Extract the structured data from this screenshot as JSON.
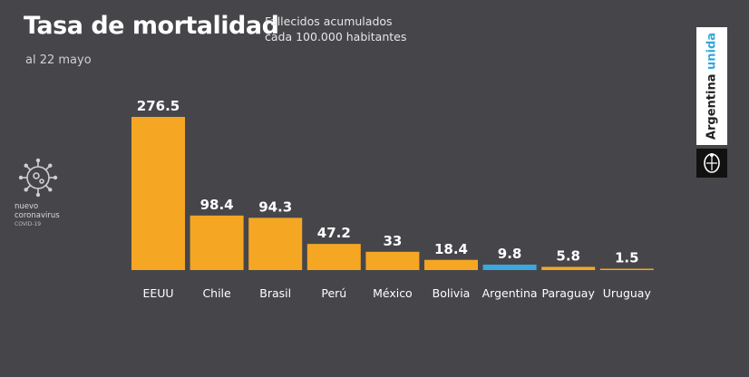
{
  "header": {
    "title": "Tasa de mortalidad",
    "subtitle_line1": "Fallecidos acumulados",
    "subtitle_line2": "cada 100.000 habitantes",
    "date": "al 22 mayo"
  },
  "logo": {
    "line1": "nuevo",
    "line2": "coronavirus",
    "line3": "COVID-19",
    "icon": "coronavirus-icon"
  },
  "brand": {
    "text_main": "Argentina",
    "text_accent": "unida",
    "icon": "national-seal-icon"
  },
  "colors": {
    "background": "#46464a",
    "bar": "#f5a623",
    "highlight": "#3ba9dc",
    "accent": "#37a7d8"
  },
  "chart_data": {
    "type": "bar",
    "categories": [
      "EEUU",
      "Chile",
      "Brasil",
      "Perú",
      "México",
      "Bolivia",
      "Argentina",
      "Paraguay",
      "Uruguay"
    ],
    "values": [
      276.5,
      98.4,
      94.3,
      47.2,
      33,
      18.4,
      9.8,
      5.8,
      1.5
    ],
    "value_labels": [
      "276.5",
      "98.4",
      "94.3",
      "47.2",
      "33",
      "18.4",
      "9.8",
      "5.8",
      "1.5"
    ],
    "highlight_category": "Argentina",
    "title": "Tasa de mortalidad",
    "subtitle": "Fallecidos acumulados cada 100.000 habitantes",
    "xlabel": "",
    "ylabel": "",
    "ylim": [
      0,
      276.5
    ],
    "grid": false,
    "legend": "none"
  }
}
